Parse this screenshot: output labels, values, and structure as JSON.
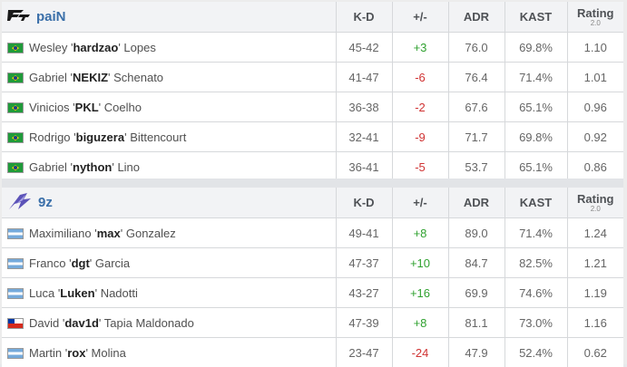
{
  "columns": {
    "kd": "K-D",
    "pm": "+/-",
    "adr": "ADR",
    "kast": "KAST",
    "rating": "Rating",
    "rating_version": "2.0"
  },
  "teams": [
    {
      "name": "paiN",
      "logo": "pain-logo-icon",
      "players": [
        {
          "flag": "brazil-flag-icon",
          "first": "Wesley",
          "nick": "hardzao",
          "last": "Lopes",
          "kd": "45-42",
          "pm": "+3",
          "adr": "76.0",
          "kast": "69.8%",
          "rating": "1.10"
        },
        {
          "flag": "brazil-flag-icon",
          "first": "Gabriel",
          "nick": "NEKIZ",
          "last": "Schenato",
          "kd": "41-47",
          "pm": "-6",
          "adr": "76.4",
          "kast": "71.4%",
          "rating": "1.01"
        },
        {
          "flag": "brazil-flag-icon",
          "first": "Vinicios",
          "nick": "PKL",
          "last": "Coelho",
          "kd": "36-38",
          "pm": "-2",
          "adr": "67.6",
          "kast": "65.1%",
          "rating": "0.96"
        },
        {
          "flag": "brazil-flag-icon",
          "first": "Rodrigo",
          "nick": "biguzera",
          "last": "Bittencourt",
          "kd": "32-41",
          "pm": "-9",
          "adr": "71.7",
          "kast": "69.8%",
          "rating": "0.92"
        },
        {
          "flag": "brazil-flag-icon",
          "first": "Gabriel",
          "nick": "nython",
          "last": "Lino",
          "kd": "36-41",
          "pm": "-5",
          "adr": "53.7",
          "kast": "65.1%",
          "rating": "0.86"
        }
      ]
    },
    {
      "name": "9z",
      "logo": "9z-logo-icon",
      "players": [
        {
          "flag": "argentina-flag-icon",
          "first": "Maximiliano",
          "nick": "max",
          "last": "Gonzalez",
          "kd": "49-41",
          "pm": "+8",
          "adr": "89.0",
          "kast": "71.4%",
          "rating": "1.24"
        },
        {
          "flag": "argentina-flag-icon",
          "first": "Franco",
          "nick": "dgt",
          "last": "Garcia",
          "kd": "47-37",
          "pm": "+10",
          "adr": "84.7",
          "kast": "82.5%",
          "rating": "1.21"
        },
        {
          "flag": "argentina-flag-icon",
          "first": "Luca",
          "nick": "Luken",
          "last": "Nadotti",
          "kd": "43-27",
          "pm": "+16",
          "adr": "69.9",
          "kast": "74.6%",
          "rating": "1.19"
        },
        {
          "flag": "chile-flag-icon",
          "first": "David",
          "nick": "dav1d",
          "last": "Tapia Maldonado",
          "kd": "47-39",
          "pm": "+8",
          "adr": "81.1",
          "kast": "73.0%",
          "rating": "1.16"
        },
        {
          "flag": "argentina-flag-icon",
          "first": "Martin",
          "nick": "rox",
          "last": "Molina",
          "kd": "23-47",
          "pm": "-24",
          "adr": "47.9",
          "kast": "52.4%",
          "rating": "0.62"
        }
      ]
    }
  ]
}
